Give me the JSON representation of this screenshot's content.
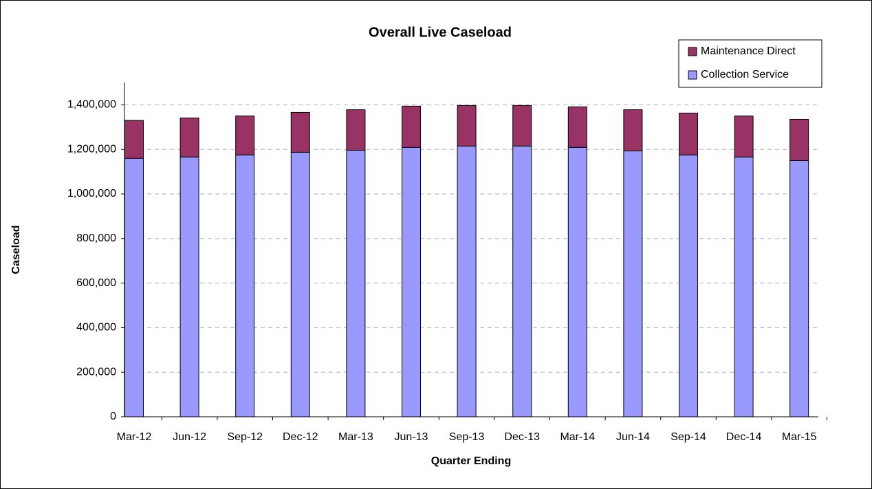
{
  "chart_data": {
    "type": "stacked_bar",
    "title": "Overall Live Caseload",
    "x_label": "Quarter Ending",
    "y_label": "Caseload",
    "categories": [
      "Mar-12",
      "Jun-12",
      "Sep-12",
      "Dec-12",
      "Mar-13",
      "Jun-13",
      "Sep-13",
      "Dec-13",
      "Mar-14",
      "Jun-14",
      "Sep-14",
      "Dec-14",
      "Mar-15"
    ],
    "series": [
      {
        "name": "Collection Service",
        "color": "#9999ff",
        "values": [
          1160000,
          1166000,
          1175000,
          1187000,
          1196000,
          1209000,
          1215000,
          1215000,
          1209000,
          1193000,
          1175000,
          1166000,
          1150000
        ]
      },
      {
        "name": "Maintenance Direct",
        "color": "#993366",
        "values": [
          170000,
          175000,
          175000,
          179000,
          182000,
          185000,
          182000,
          182000,
          182000,
          185000,
          188000,
          184000,
          185000
        ]
      }
    ],
    "ylim": [
      0,
      1500000
    ],
    "yticks": [
      0,
      {
        "value": 200000,
        "label": "200,000"
      },
      {
        "value": 400000,
        "label": "400,000"
      },
      {
        "value": 600000,
        "label": "600,000"
      },
      {
        "value": 800000,
        "label": "800,000"
      },
      {
        "value": 1000000,
        "label": "1,000,000"
      },
      {
        "value": 1200000,
        "label": "1,200,000"
      },
      {
        "value": 1400000,
        "label": "1,400,000"
      }
    ],
    "grid": true,
    "legend": "top-right"
  }
}
